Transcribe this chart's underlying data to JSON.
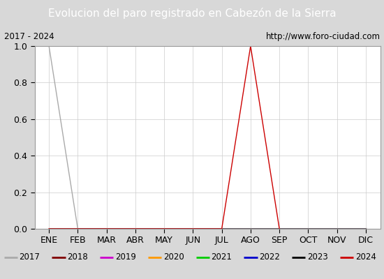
{
  "title": "Evolucion del paro registrado en Cabezón de la Sierra",
  "title_color": "#ffffff",
  "title_bg_color": "#4472c4",
  "subtitle_left": "2017 - 2024",
  "subtitle_right": "http://www.foro-ciudad.com",
  "x_labels": [
    "ENE",
    "FEB",
    "MAR",
    "ABR",
    "MAY",
    "JUN",
    "JUL",
    "AGO",
    "SEP",
    "OCT",
    "NOV",
    "DIC"
  ],
  "ylim": [
    0.0,
    1.0
  ],
  "yticks": [
    0.0,
    0.2,
    0.4,
    0.6,
    0.8,
    1.0
  ],
  "series": {
    "2017": {
      "color": "#aaaaaa",
      "data": [
        1.0,
        0.0,
        0.0,
        0.0,
        0.0,
        0.0,
        0.0,
        0.0,
        0.0,
        0.0,
        0.0,
        0.0
      ]
    },
    "2018": {
      "color": "#800000",
      "data": [
        0.0,
        0.0,
        0.0,
        0.0,
        0.0,
        0.0,
        0.0,
        0.0,
        0.0,
        0.0,
        0.0,
        0.0
      ]
    },
    "2019": {
      "color": "#cc00cc",
      "data": [
        0.0,
        0.0,
        0.0,
        0.0,
        0.0,
        0.0,
        0.0,
        0.0,
        0.0,
        0.0,
        0.0,
        0.0
      ]
    },
    "2020": {
      "color": "#ff9900",
      "data": [
        0.0,
        0.0,
        0.0,
        0.0,
        0.0,
        0.0,
        0.0,
        0.0,
        0.0,
        0.0,
        0.0,
        0.0
      ]
    },
    "2021": {
      "color": "#00cc00",
      "data": [
        0.0,
        0.0,
        0.0,
        0.0,
        0.0,
        0.0,
        0.0,
        0.0,
        0.0,
        0.0,
        0.0,
        0.0
      ]
    },
    "2022": {
      "color": "#0000cc",
      "data": [
        0.0,
        0.0,
        0.0,
        0.0,
        0.0,
        0.0,
        0.0,
        0.0,
        0.0,
        0.0,
        0.0,
        0.0
      ]
    },
    "2023": {
      "color": "#000000",
      "data": [
        0.0,
        0.0,
        0.0,
        0.0,
        0.0,
        0.0,
        0.0,
        0.0,
        0.0,
        0.0,
        0.0,
        0.0
      ]
    },
    "2024": {
      "color": "#cc0000",
      "data": [
        0.0,
        0.0,
        0.0,
        0.0,
        0.0,
        0.0,
        0.0,
        1.0,
        0.0,
        null,
        null,
        null
      ]
    }
  },
  "legend_order": [
    "2017",
    "2018",
    "2019",
    "2020",
    "2021",
    "2022",
    "2023",
    "2024"
  ],
  "bg_color": "#d8d8d8",
  "plot_bg_color": "#ffffff",
  "legend_border_color": "#4472c4",
  "subtitle_border_color": "#000000",
  "title_fontsize": 11,
  "tick_fontsize": 9
}
